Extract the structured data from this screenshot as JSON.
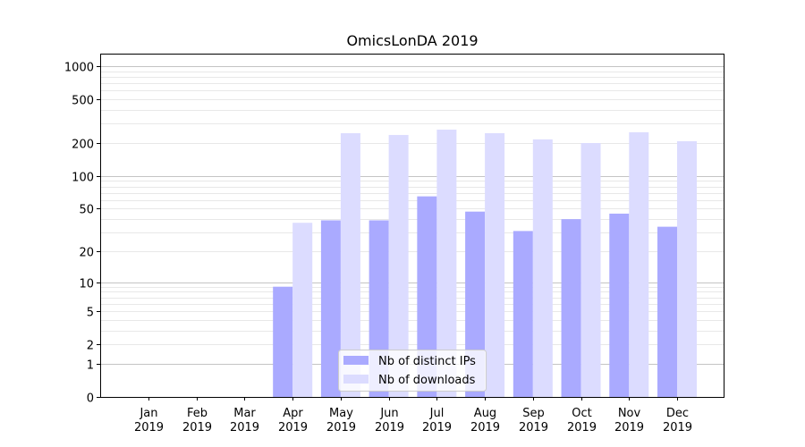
{
  "chart_data": {
    "type": "bar",
    "title": "OmicsLonDA 2019",
    "xlabel": "",
    "ylabel": "",
    "yscale": "log10(1+y)",
    "ylim": [
      0,
      1300
    ],
    "yticks": [
      0,
      1,
      2,
      5,
      10,
      20,
      50,
      100,
      200,
      500,
      1000
    ],
    "ytick_labels": [
      "0",
      "1",
      "2",
      "5",
      "10",
      "20",
      "50",
      "100",
      "200",
      "500",
      "1000"
    ],
    "grid": true,
    "legend_position": "lower-center",
    "categories": [
      {
        "month": "Jan",
        "year": "2019"
      },
      {
        "month": "Feb",
        "year": "2019"
      },
      {
        "month": "Mar",
        "year": "2019"
      },
      {
        "month": "Apr",
        "year": "2019"
      },
      {
        "month": "May",
        "year": "2019"
      },
      {
        "month": "Jun",
        "year": "2019"
      },
      {
        "month": "Jul",
        "year": "2019"
      },
      {
        "month": "Aug",
        "year": "2019"
      },
      {
        "month": "Sep",
        "year": "2019"
      },
      {
        "month": "Oct",
        "year": "2019"
      },
      {
        "month": "Nov",
        "year": "2019"
      },
      {
        "month": "Dec",
        "year": "2019"
      }
    ],
    "series": [
      {
        "name": "Nb of distinct IPs",
        "color": "#aaaaff",
        "values": [
          0,
          0,
          0,
          9,
          39,
          39,
          65,
          47,
          31,
          40,
          45,
          34
        ]
      },
      {
        "name": "Nb of downloads",
        "color": "#dcdcff",
        "values": [
          0,
          0,
          0,
          37,
          246,
          237,
          265,
          246,
          216,
          200,
          251,
          208
        ]
      }
    ]
  }
}
